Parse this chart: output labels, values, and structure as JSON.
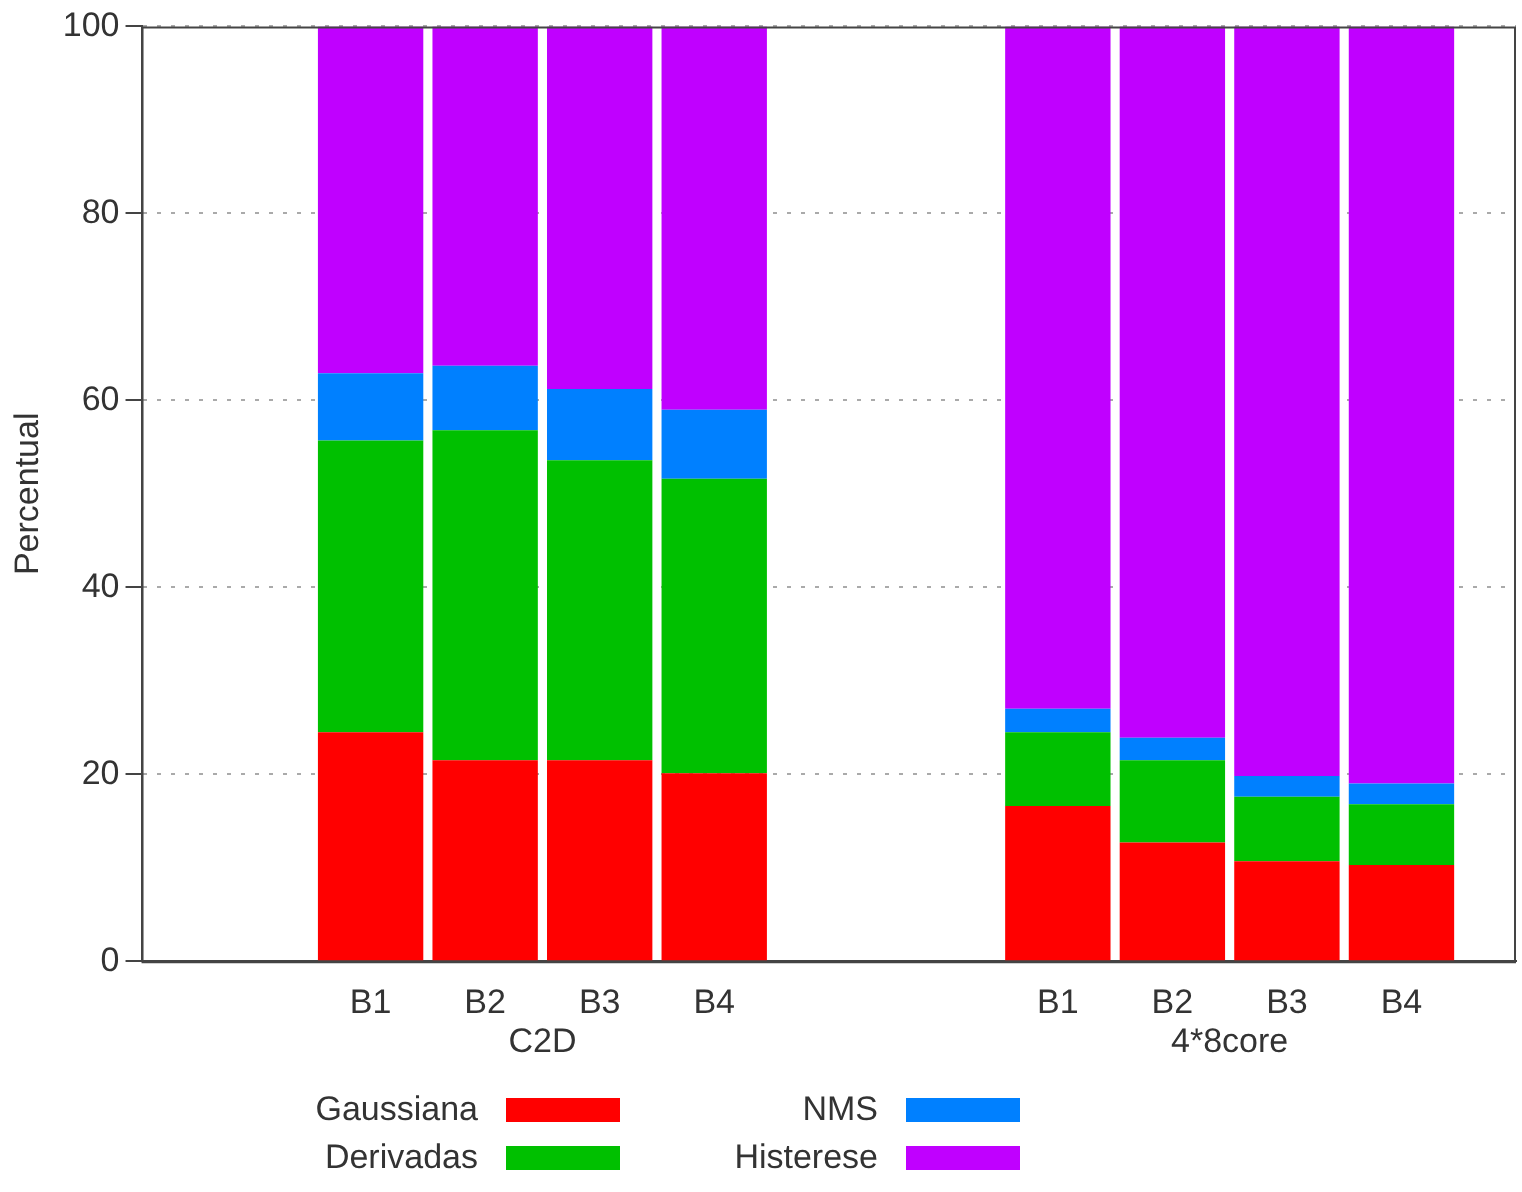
{
  "chart_data": {
    "type": "bar",
    "stacked": true,
    "ylabel": "Percentual",
    "categories": [
      null,
      null,
      "B1",
      "B2",
      "B3",
      "B4",
      null,
      null,
      "B1",
      "B2",
      "B3",
      "B4",
      null
    ],
    "series": [
      {
        "name": "Gaussiana",
        "color": "#ff0000",
        "values": [
          null,
          null,
          24.5,
          21.5,
          21.5,
          20.1,
          null,
          null,
          16.6,
          12.7,
          10.7,
          10.3,
          null
        ]
      },
      {
        "name": "Derivadas",
        "color": "#00c000",
        "values": [
          null,
          null,
          31.2,
          35.3,
          32.1,
          31.5,
          null,
          null,
          7.9,
          8.8,
          6.9,
          6.5,
          null
        ]
      },
      {
        "name": "NMS",
        "color": "#0080ff",
        "values": [
          null,
          null,
          7.2,
          6.9,
          7.6,
          7.4,
          null,
          null,
          2.5,
          2.4,
          2.2,
          2.2,
          null
        ]
      },
      {
        "name": "Histerese",
        "color": "#c000ff",
        "values": [
          null,
          null,
          37.1,
          36.3,
          38.8,
          41.0,
          null,
          null,
          73.0,
          76.1,
          80.2,
          81.0,
          null
        ]
      }
    ],
    "annotations": [
      "C2D",
      "4*8core"
    ],
    "ylim": [
      0,
      100
    ],
    "yticks": [
      0,
      20,
      40,
      60,
      80,
      100
    ],
    "grid": "y",
    "legend": "bottom"
  }
}
